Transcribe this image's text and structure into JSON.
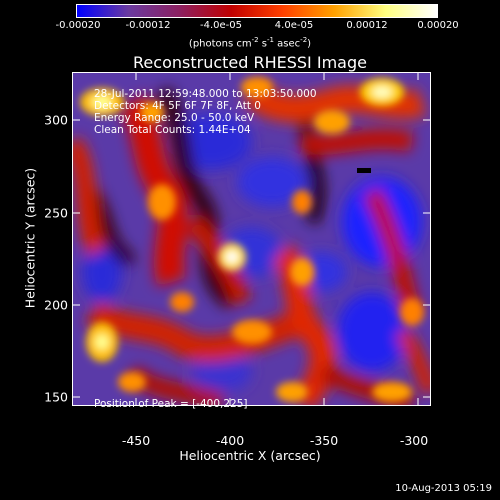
{
  "colorbar": {
    "ticks": [
      "-0.00020",
      "-0.00012",
      "-4.0e-05",
      "4.0e-05",
      "0.00012",
      "0.00020"
    ],
    "units_main": "(photons cm",
    "units_exp1": "-2",
    "units_mid": " s",
    "units_exp2": "-1",
    "units_mid2": " asec",
    "units_exp3": "-2",
    "units_end": ")",
    "colors": [
      "#0000ff",
      "#6a3aa0",
      "#8c2060",
      "#c00000",
      "#ff4000",
      "#ffa000",
      "#ffff80",
      "#ffffff"
    ]
  },
  "plot": {
    "title": "Reconstructed RHESSI Image",
    "annotations": {
      "time": "28-Jul-2011 12:59:48.000 to 13:03:50.000",
      "detectors": "Detectors: 4F 5F 6F 7F 8F, Att 0",
      "energy": "Energy Range: 25.0 - 50.0 keV",
      "clean": "Clean    Total Counts: 1.44E+04",
      "peak": "Position of Peak = [-400,225]"
    },
    "xlabel": "Heliocentric X (arcsec)",
    "ylabel": "Heliocentric Y (arcsec)",
    "xticks": [
      "-450",
      "-400",
      "-350",
      "-300"
    ],
    "yticks": [
      "300",
      "250",
      "200",
      "150"
    ],
    "x_range": [
      -485,
      -295
    ],
    "y_range": [
      135,
      330
    ]
  },
  "footer": "10-Aug-2013 05:19"
}
